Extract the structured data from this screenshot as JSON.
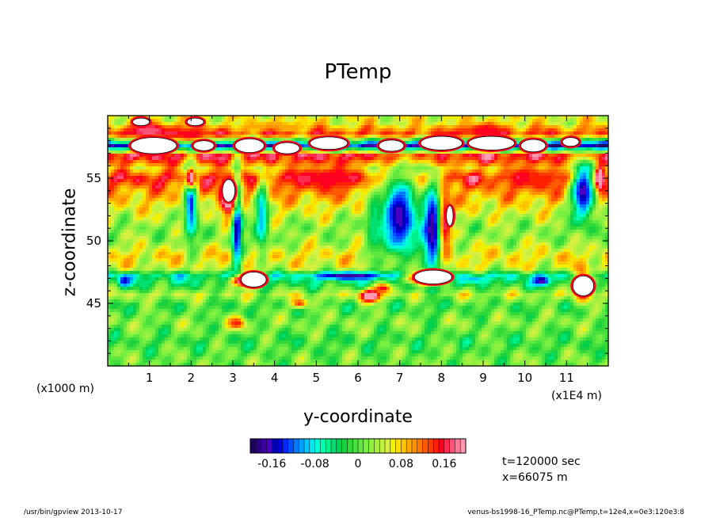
{
  "chart_data": {
    "type": "heatmap",
    "title": "PTemp",
    "xlabel": "y-coordinate",
    "ylabel": "z-coordinate",
    "x_unit_left": "(x1000 m)",
    "x_unit_right": "(x1E4 m)",
    "x_range": [
      0,
      12
    ],
    "y_range": [
      40,
      60
    ],
    "x_ticks": [
      "1",
      "2",
      "3",
      "4",
      "5",
      "6",
      "7",
      "8",
      "9",
      "10",
      "11"
    ],
    "y_ticks": [
      "45",
      "50",
      "55"
    ],
    "colorbar": {
      "range": [
        -0.2,
        0.2
      ],
      "tick_labels": [
        "-0.16",
        "-0.08",
        "0",
        "0.08",
        "0.16"
      ],
      "tick_values": [
        -0.16,
        -0.08,
        0,
        0.08,
        0.16
      ],
      "colors": [
        "#1e0064",
        "#2a0080",
        "#3a00a0",
        "#4800c0",
        "#0000b4",
        "#0000dc",
        "#0028ff",
        "#0050ff",
        "#0078ff",
        "#00a0ff",
        "#00c8ff",
        "#00e6f0",
        "#00ffd8",
        "#00ffb0",
        "#00f08c",
        "#00e070",
        "#00d050",
        "#18d040",
        "#30d838",
        "#48e040",
        "#60e840",
        "#78f040",
        "#90f040",
        "#a8f040",
        "#c0f040",
        "#d8f040",
        "#f0f000",
        "#ffdc00",
        "#ffc400",
        "#ffa800",
        "#ff9000",
        "#ff7800",
        "#ff5a00",
        "#ff3c00",
        "#ff2000",
        "#ff0020",
        "#ff2a50",
        "#ff5278",
        "#ff7a98",
        "#ff9cb4"
      ]
    },
    "bands_z": [
      {
        "z": 59.4,
        "v": 0.06
      },
      {
        "z": 58.5,
        "v": 0.14
      },
      {
        "z": 57.6,
        "v": -0.16
      },
      {
        "z": 56.8,
        "v": 0.17
      },
      {
        "z": 55.8,
        "v": 0.08
      },
      {
        "z": 55.0,
        "v": 0.15
      },
      {
        "z": 54.0,
        "v": 0.1
      },
      {
        "z": 52.5,
        "v": 0.06
      },
      {
        "z": 51.0,
        "v": 0.02
      },
      {
        "z": 50.0,
        "v": 0.03
      },
      {
        "z": 48.8,
        "v": 0.07
      },
      {
        "z": 47.8,
        "v": 0.05
      },
      {
        "z": 47.2,
        "v": -0.06
      },
      {
        "z": 46.4,
        "v": -0.02
      },
      {
        "z": 45.7,
        "v": 0.04
      },
      {
        "z": 44.8,
        "v": -0.01
      },
      {
        "z": 43.5,
        "v": 0.02
      },
      {
        "z": 42.0,
        "v": -0.01
      },
      {
        "z": 40.5,
        "v": 0.01
      }
    ],
    "features": [
      {
        "y": 3.1,
        "z": 51.5,
        "ry": 0.12,
        "rz": 4.0,
        "v": -0.18
      },
      {
        "y": 2.9,
        "z": 53.5,
        "ry": 0.2,
        "rz": 1.5,
        "v": 0.25
      },
      {
        "y": 2.0,
        "z": 53.0,
        "ry": 0.15,
        "rz": 3.0,
        "v": -0.14
      },
      {
        "y": 2.0,
        "z": 55.0,
        "ry": 0.1,
        "rz": 0.8,
        "v": 0.25
      },
      {
        "y": 3.7,
        "z": 52.0,
        "ry": 0.15,
        "rz": 3.0,
        "v": -0.1
      },
      {
        "y": 7.0,
        "z": 52.0,
        "ry": 0.45,
        "rz": 3.5,
        "v": -0.17
      },
      {
        "y": 7.8,
        "z": 51.0,
        "ry": 0.25,
        "rz": 4.0,
        "v": -0.18
      },
      {
        "y": 8.1,
        "z": 51.5,
        "ry": 0.15,
        "rz": 3.0,
        "v": 0.17
      },
      {
        "y": 6.4,
        "z": 51.5,
        "ry": 0.2,
        "rz": 3.0,
        "v": -0.05
      },
      {
        "y": 11.4,
        "z": 54.0,
        "ry": 0.3,
        "rz": 2.5,
        "v": -0.17
      },
      {
        "y": 11.4,
        "z": 46.5,
        "ry": 0.2,
        "rz": 1.2,
        "v": 0.22
      },
      {
        "y": 11.8,
        "z": 55.0,
        "ry": 0.1,
        "rz": 1.0,
        "v": 0.25
      },
      {
        "y": 5.8,
        "z": 47.2,
        "ry": 0.8,
        "rz": 0.3,
        "v": -0.18
      },
      {
        "y": 3.3,
        "z": 46.8,
        "ry": 0.35,
        "rz": 0.5,
        "v": 0.25
      },
      {
        "y": 7.6,
        "z": 47.0,
        "ry": 0.45,
        "rz": 0.5,
        "v": 0.25
      },
      {
        "y": 6.3,
        "z": 45.6,
        "ry": 0.25,
        "rz": 0.5,
        "v": 0.25
      },
      {
        "y": 6.6,
        "z": 46.2,
        "ry": 0.2,
        "rz": 0.4,
        "v": 0.16
      },
      {
        "y": 5.2,
        "z": 55.0,
        "ry": 0.8,
        "rz": 1.0,
        "v": 0.16
      },
      {
        "y": 10.2,
        "z": 55.0,
        "ry": 0.6,
        "rz": 1.0,
        "v": 0.15
      },
      {
        "y": 0.4,
        "z": 46.8,
        "ry": 0.15,
        "rz": 0.5,
        "v": -0.15
      },
      {
        "y": 10.4,
        "z": 46.8,
        "ry": 0.2,
        "rz": 0.4,
        "v": -0.18
      },
      {
        "y": 8.8,
        "z": 46.9,
        "ry": 0.3,
        "rz": 0.3,
        "v": -0.1
      },
      {
        "y": 3.1,
        "z": 43.4,
        "ry": 0.2,
        "rz": 0.5,
        "v": 0.15
      },
      {
        "y": 4.6,
        "z": 45.0,
        "ry": 0.2,
        "rz": 0.4,
        "v": 0.14
      },
      {
        "y": 1.0,
        "z": 58.8,
        "ry": 0.6,
        "rz": 0.6,
        "v": 0.18
      },
      {
        "y": 2.0,
        "z": 58.5,
        "ry": 0.5,
        "rz": 0.6,
        "v": 0.16
      },
      {
        "y": 9.0,
        "z": 58.8,
        "ry": 0.6,
        "rz": 0.6,
        "v": 0.16
      },
      {
        "y": 4.0,
        "z": 59.2,
        "ry": 0.8,
        "rz": 0.4,
        "v": 0.1
      }
    ],
    "saturated_blobs": [
      {
        "y": 1.1,
        "z": 57.6,
        "ry": 0.55,
        "rz": 0.65
      },
      {
        "y": 2.3,
        "z": 57.6,
        "ry": 0.25,
        "rz": 0.4
      },
      {
        "y": 3.4,
        "z": 57.6,
        "ry": 0.35,
        "rz": 0.55
      },
      {
        "y": 4.3,
        "z": 57.4,
        "ry": 0.3,
        "rz": 0.45
      },
      {
        "y": 5.3,
        "z": 57.8,
        "ry": 0.45,
        "rz": 0.5
      },
      {
        "y": 6.8,
        "z": 57.6,
        "ry": 0.3,
        "rz": 0.45
      },
      {
        "y": 8.0,
        "z": 57.8,
        "ry": 0.5,
        "rz": 0.55
      },
      {
        "y": 9.2,
        "z": 57.8,
        "ry": 0.55,
        "rz": 0.55
      },
      {
        "y": 10.2,
        "z": 57.6,
        "ry": 0.3,
        "rz": 0.5
      },
      {
        "y": 11.1,
        "z": 57.9,
        "ry": 0.2,
        "rz": 0.35
      },
      {
        "y": 0.8,
        "z": 59.5,
        "ry": 0.2,
        "rz": 0.3
      },
      {
        "y": 2.1,
        "z": 59.5,
        "ry": 0.2,
        "rz": 0.3
      },
      {
        "y": 3.5,
        "z": 46.9,
        "ry": 0.3,
        "rz": 0.6
      },
      {
        "y": 7.8,
        "z": 47.1,
        "ry": 0.45,
        "rz": 0.55
      },
      {
        "y": 11.4,
        "z": 46.4,
        "ry": 0.25,
        "rz": 0.8
      },
      {
        "y": 2.9,
        "z": 54.0,
        "ry": 0.15,
        "rz": 0.9
      },
      {
        "y": 8.2,
        "z": 52.0,
        "ry": 0.08,
        "rz": 0.8
      }
    ]
  },
  "info": {
    "time": "t=120000 sec",
    "position": "x=66075 m"
  },
  "footer": {
    "left": "/usr/bin/gpview   2013-10-17",
    "right": "venus-bs1998-16_PTemp.nc@PTemp,t=12e4,x=0e3:120e3:8"
  }
}
